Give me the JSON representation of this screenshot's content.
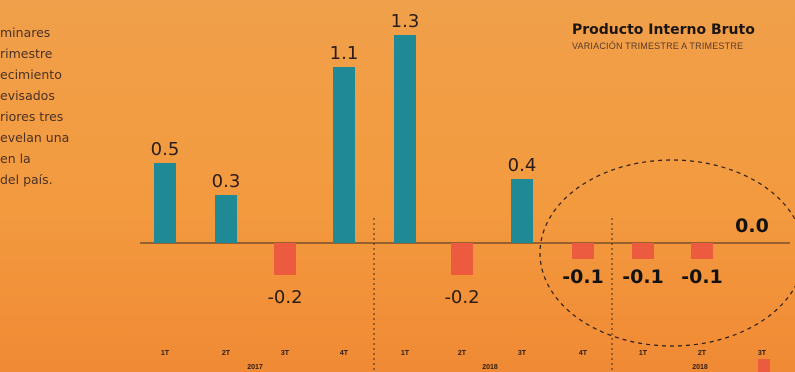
{
  "intro_text": {
    "lines": [
      "minares",
      "rimestre",
      "ecimiento",
      "evisados",
      "riores tres",
      "evelan una",
      "en la",
      "del país."
    ]
  },
  "chart_data": {
    "type": "bar",
    "title": "Producto Interno Bruto",
    "subtitle": "VARIACIÓN TRIMESTRE A TRIMESTRE",
    "categories": [
      "1T",
      "2T",
      "3T",
      "4T",
      "1T",
      "2T",
      "3T",
      "4T",
      "1T",
      "2T",
      "3T"
    ],
    "year_labels": [
      "2017",
      "2018",
      "2018"
    ],
    "values": [
      0.5,
      0.3,
      -0.2,
      1.1,
      1.3,
      -0.2,
      0.4,
      -0.1,
      -0.1,
      -0.1,
      0.0
    ],
    "value_labels": [
      "0.5",
      "0.3",
      "-0.2",
      "1.1",
      "1.3",
      "-0.2",
      "0.4",
      "-0.1",
      "-0.1",
      "-0.1",
      "0.0"
    ],
    "highlighted_labels": [
      7,
      8,
      9,
      10
    ],
    "colors": {
      "positive": "#1f8a96",
      "negative": "#ec5b3f",
      "axis": "#3a2a22",
      "text": "#2a1d17"
    }
  }
}
